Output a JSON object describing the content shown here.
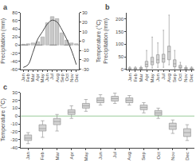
{
  "chart_data": [
    {
      "type": "bar",
      "title": "a",
      "categories": [
        "Jan",
        "Feb",
        "Mar",
        "Apr",
        "May",
        "Jun",
        "Jul",
        "Aug",
        "Sep",
        "Oct",
        "Nov",
        "Dec"
      ],
      "ylabel": "Precipitation (mm)",
      "y2label": "Temperature (°C)",
      "ylim": [
        -60,
        80
      ],
      "yticks": [
        -60,
        -40,
        -20,
        0,
        20,
        40,
        60,
        80
      ],
      "y2lim": [
        -30,
        30
      ],
      "y2ticks": [
        -30,
        -20,
        -10,
        0,
        10,
        20,
        30
      ],
      "grid": false,
      "hline": {
        "y": 0,
        "color": "#888888",
        "line_style": "dash"
      },
      "series": [
        {
          "type": "bar",
          "color": "#c8c8c8",
          "values": [
            2,
            3,
            5,
            8,
            20,
            55,
            70,
            65,
            30,
            12,
            5,
            3
          ]
        },
        {
          "type": "line",
          "axis": "y2",
          "color": "#444444",
          "line_style": "solid",
          "values": [
            -28,
            -25,
            -12,
            2,
            10,
            18,
            22,
            20,
            12,
            2,
            -10,
            -25
          ]
        }
      ]
    },
    {
      "type": "box",
      "title": "b",
      "categories": [
        "Jan",
        "Feb",
        "Mar",
        "Apr",
        "May",
        "Jun",
        "Jul",
        "Aug",
        "Sep",
        "Oct",
        "Nov",
        "Dec"
      ],
      "ylabel": "Precipitation (mm)",
      "ylim": [
        0,
        225
      ],
      "yticks": [
        0,
        50,
        100,
        150,
        200
      ],
      "grid": false,
      "color": "#d4d4d4",
      "median": [
        3,
        3,
        3,
        20,
        30,
        38,
        42,
        70,
        22,
        8,
        4,
        3
      ],
      "q1": [
        1,
        1,
        1,
        10,
        18,
        25,
        28,
        38,
        10,
        4,
        1,
        1
      ],
      "q3": [
        6,
        6,
        7,
        32,
        48,
        58,
        60,
        92,
        38,
        16,
        7,
        6
      ],
      "whisker_low": [
        0,
        0,
        0,
        2,
        5,
        8,
        8,
        18,
        2,
        0,
        0,
        0
      ],
      "whisker_high": [
        10,
        10,
        12,
        75,
        128,
        105,
        155,
        215,
        75,
        28,
        13,
        10
      ]
    },
    {
      "type": "box",
      "title": "c",
      "categories": [
        "Jan",
        "Feb",
        "Mar",
        "Apr",
        "May",
        "Jun",
        "Jul",
        "Aug",
        "Sep",
        "Oct",
        "Nov",
        "Dec"
      ],
      "ylabel": "Temperature (°C)",
      "ylim": [
        -40,
        30
      ],
      "yticks": [
        -40,
        -30,
        -20,
        -10,
        0,
        10,
        20,
        30
      ],
      "grid": false,
      "color": "#d4d4d4",
      "hline": {
        "y": 0,
        "color": "#99cc99",
        "line_style": "solid"
      },
      "median": [
        -28,
        -16,
        -7,
        5,
        13,
        20,
        22,
        20,
        11,
        4,
        -13,
        -21
      ],
      "q1": [
        -31,
        -19,
        -11,
        2,
        10,
        17,
        19,
        17,
        8,
        1,
        -17,
        -26
      ],
      "q3": [
        -24,
        -11,
        -3,
        8,
        16,
        23,
        25,
        23,
        14,
        7,
        -9,
        -16
      ],
      "whisker_low": [
        -35,
        -27,
        -19,
        -3,
        6,
        14,
        16,
        14,
        4,
        -3,
        -22,
        -31
      ],
      "whisker_high": [
        -21,
        -6,
        2,
        13,
        21,
        27,
        29,
        26,
        17,
        10,
        -5,
        -11
      ]
    }
  ]
}
